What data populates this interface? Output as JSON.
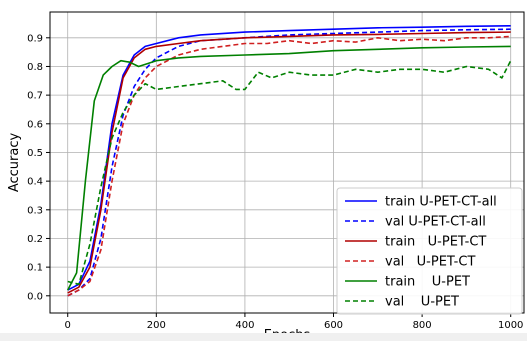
{
  "chart_data": {
    "type": "line",
    "title": "",
    "xlabel": "Epochs",
    "ylabel": "Accuracy",
    "xlim": [
      -40,
      1030
    ],
    "ylim": [
      -0.06,
      0.99
    ],
    "xticks": [
      0,
      200,
      400,
      600,
      800,
      1000
    ],
    "yticks": [
      0.0,
      0.1,
      0.2,
      0.3,
      0.4,
      0.5,
      0.6,
      0.7,
      0.8,
      0.9
    ],
    "grid": true,
    "legend_position": "bottom-right",
    "series": [
      {
        "name": "train U-PET-CT-all",
        "color": "#0000ff",
        "dash": "solid",
        "x": [
          0,
          25,
          50,
          75,
          100,
          125,
          150,
          175,
          200,
          250,
          300,
          400,
          500,
          600,
          700,
          800,
          900,
          1000
        ],
        "y": [
          0.02,
          0.04,
          0.12,
          0.32,
          0.6,
          0.77,
          0.84,
          0.87,
          0.88,
          0.9,
          0.91,
          0.92,
          0.925,
          0.93,
          0.935,
          0.937,
          0.94,
          0.942
        ]
      },
      {
        "name": "val U-PET-CT-all",
        "color": "#0000ff",
        "dash": "dashed",
        "x": [
          0,
          25,
          50,
          75,
          100,
          125,
          150,
          175,
          200,
          250,
          300,
          400,
          500,
          600,
          700,
          800,
          900,
          1000
        ],
        "y": [
          0.0,
          0.02,
          0.06,
          0.2,
          0.45,
          0.63,
          0.73,
          0.79,
          0.83,
          0.87,
          0.89,
          0.9,
          0.91,
          0.915,
          0.92,
          0.925,
          0.928,
          0.93
        ]
      },
      {
        "name": "train   U-PET-CT",
        "color": "#b00000",
        "dash": "solid",
        "x": [
          0,
          25,
          50,
          75,
          100,
          125,
          150,
          175,
          200,
          250,
          300,
          400,
          500,
          600,
          700,
          800,
          900,
          1000
        ],
        "y": [
          0.01,
          0.03,
          0.1,
          0.3,
          0.57,
          0.76,
          0.83,
          0.86,
          0.87,
          0.88,
          0.89,
          0.9,
          0.905,
          0.91,
          0.912,
          0.915,
          0.918,
          0.92
        ]
      },
      {
        "name": "val   U-PET-CT",
        "color": "#d02020",
        "dash": "dashed",
        "x": [
          0,
          25,
          50,
          75,
          100,
          125,
          150,
          175,
          200,
          250,
          300,
          350,
          400,
          450,
          500,
          550,
          600,
          650,
          700,
          750,
          800,
          850,
          900,
          950,
          1000
        ],
        "y": [
          0.0,
          0.02,
          0.05,
          0.16,
          0.4,
          0.6,
          0.7,
          0.76,
          0.8,
          0.84,
          0.86,
          0.87,
          0.88,
          0.88,
          0.89,
          0.88,
          0.89,
          0.885,
          0.9,
          0.89,
          0.895,
          0.89,
          0.9,
          0.9,
          0.905
        ]
      },
      {
        "name": "train    U-PET",
        "color": "#008000",
        "dash": "solid",
        "x": [
          0,
          20,
          40,
          60,
          80,
          100,
          120,
          140,
          160,
          180,
          200,
          250,
          300,
          400,
          500,
          600,
          700,
          800,
          900,
          1000
        ],
        "y": [
          0.02,
          0.08,
          0.4,
          0.68,
          0.77,
          0.8,
          0.82,
          0.815,
          0.8,
          0.81,
          0.82,
          0.83,
          0.835,
          0.84,
          0.845,
          0.855,
          0.86,
          0.865,
          0.868,
          0.87
        ]
      },
      {
        "name": "val    U-PET",
        "color": "#008000",
        "dash": "dashed",
        "x": [
          0,
          25,
          50,
          75,
          100,
          125,
          150,
          175,
          200,
          250,
          300,
          350,
          380,
          400,
          430,
          460,
          500,
          550,
          600,
          650,
          700,
          750,
          800,
          850,
          900,
          950,
          980,
          1000
        ],
        "y": [
          0.05,
          0.04,
          0.18,
          0.38,
          0.55,
          0.64,
          0.7,
          0.74,
          0.72,
          0.73,
          0.74,
          0.75,
          0.72,
          0.72,
          0.78,
          0.76,
          0.78,
          0.77,
          0.77,
          0.79,
          0.78,
          0.79,
          0.79,
          0.78,
          0.8,
          0.79,
          0.76,
          0.82
        ]
      }
    ]
  }
}
